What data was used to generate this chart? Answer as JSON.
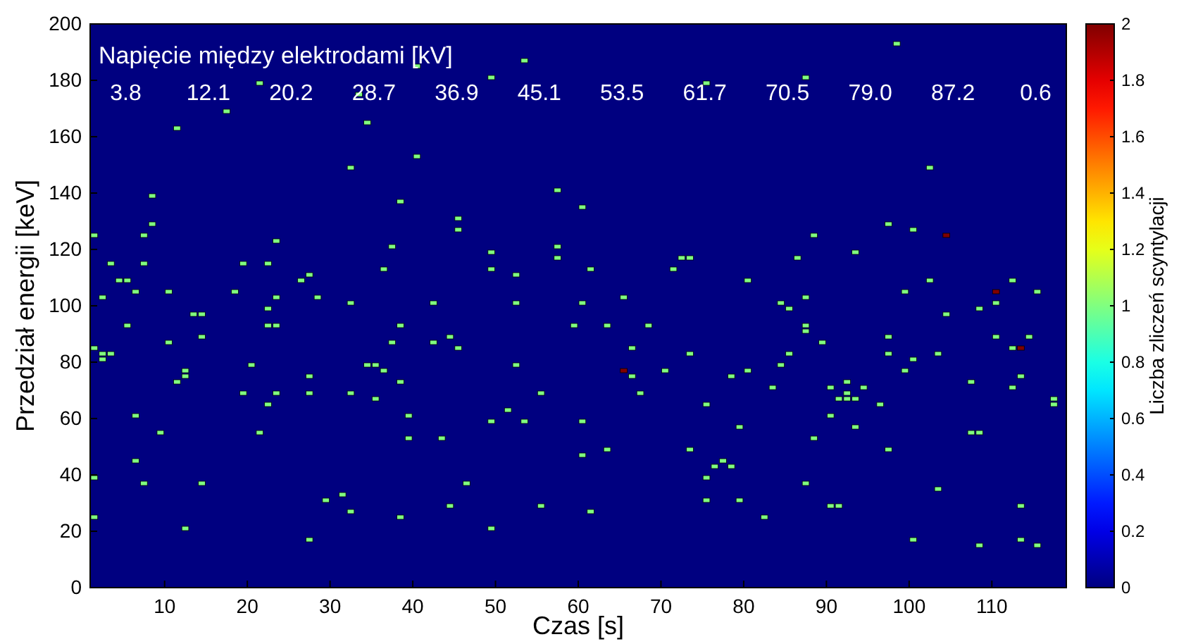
{
  "chart_data": {
    "type": "scatter",
    "xlabel": "Czas [s]",
    "ylabel": "Przedział energii [keV]",
    "clabel": "Liczba zliczeń scyntylacji",
    "annotations": [
      "Napięcie między elektrodami [kV]",
      "3.8",
      "12.1",
      "20.2",
      "28.7",
      "36.9",
      "45.1",
      "53.5",
      "61.7",
      "70.5",
      "79.0",
      "87.2",
      "0.6"
    ],
    "xlim": [
      1,
      119
    ],
    "xticks": [
      10,
      20,
      30,
      40,
      50,
      60,
      70,
      80,
      90,
      100,
      110
    ],
    "ylim": [
      0,
      200
    ],
    "yticks": [
      0,
      20,
      40,
      60,
      80,
      100,
      120,
      140,
      160,
      180,
      200
    ],
    "clim": [
      0,
      2
    ],
    "cticks": [
      0,
      0.2,
      0.4,
      0.6,
      0.8,
      1,
      1.2,
      1.4,
      1.6,
      1.8,
      2
    ],
    "marker": "square",
    "grid": false,
    "series": [
      {
        "x": [
          1.5,
          2.5,
          3.5,
          4.5,
          5.5,
          6.5,
          7.5,
          7.5,
          8.5,
          8.5,
          10.5,
          11.5,
          13.5,
          14.5,
          17.5,
          18.5,
          19.5,
          21.5,
          22.5,
          22.5,
          23.5,
          23.5,
          26.5,
          27.5,
          28.5,
          32.5,
          32.5,
          33.5,
          34.5,
          36.5,
          37.5,
          38.5,
          38.5,
          5.5,
          22.5,
          23.5,
          1.5,
          2.5,
          3.5,
          2.5,
          10.5,
          14.5,
          12.5,
          12.5,
          11.5,
          6.5,
          9.5,
          6.5,
          7.5,
          1.5,
          1.5,
          14.5,
          12.5,
          20.5,
          19.5,
          23.5,
          22.5,
          21.5,
          27.5,
          27.5,
          27.5,
          29.5,
          31.5,
          32.5,
          32.5,
          34.5,
          35.5,
          36.5,
          35.5,
          37.5,
          38.5,
          38.5,
          39.5,
          39.5,
          40.5,
          40.5,
          45.5,
          45.5,
          49.5,
          49.5,
          49.5,
          52.5,
          53.5,
          42.5,
          52.5,
          57.5,
          57.5,
          57.5,
          60.5,
          60.5,
          61.5,
          65.5,
          71.5,
          72.5,
          73.5,
          75.5,
          80.5,
          59.5,
          63.5,
          68.5,
          42.5,
          44.5,
          45.5,
          52.5,
          51.5,
          49.5,
          53.5,
          43.5,
          46.5,
          44.5,
          49.5,
          55.5,
          55.5,
          60.5,
          60.5,
          61.5,
          63.5,
          65.5,
          66.5,
          66.5,
          67.5,
          70.5,
          73.5,
          73.5,
          75.5,
          75.5,
          75.5,
          76.5,
          77.5,
          78.5,
          78.5,
          79.5,
          79.5,
          80.5,
          98.5,
          87.5,
          102.5,
          97.5,
          100.5,
          104.5,
          88.5,
          86.5,
          93.5,
          102.5,
          112.5,
          99.5,
          110.5,
          115.5,
          87.5,
          84.5,
          85.5,
          108.5,
          110.5,
          104.5,
          87.5,
          87.5,
          89.5,
          97.5,
          97.5,
          100.5,
          103.5,
          110.5,
          114.5,
          112.5,
          113.5,
          85.5,
          84.5,
          99.5,
          83.5,
          90.5,
          92.5,
          94.5,
          91.5,
          92.5,
          93.5,
          92.5,
          96.5,
          90.5,
          107.5,
          113.5,
          112.5,
          117.5,
          117.5,
          93.5,
          88.5,
          107.5,
          108.5,
          97.5,
          87.5,
          103.5,
          82.5,
          90.5,
          91.5,
          113.5,
          100.5,
          108.5,
          113.5,
          115.5
        ],
        "values": [
          125,
          103,
          115,
          109,
          109,
          105,
          115,
          125,
          129,
          139,
          105,
          163,
          97,
          97,
          169,
          105,
          115,
          179,
          115,
          99,
          123,
          103,
          109,
          111,
          103,
          149,
          101,
          175,
          165,
          113,
          121,
          137,
          93,
          93,
          93,
          93,
          85,
          83,
          83,
          81,
          87,
          89,
          77,
          75,
          73,
          61,
          55,
          45,
          37,
          39,
          25,
          37,
          21,
          79,
          69,
          69,
          65,
          55,
          75,
          69,
          17,
          31,
          33,
          27,
          69,
          79,
          79,
          77,
          67,
          87,
          73,
          25,
          61,
          53,
          185,
          153,
          131,
          127,
          181,
          119,
          113,
          111,
          187,
          101,
          101,
          141,
          121,
          117,
          135,
          101,
          113,
          103,
          113,
          117,
          117,
          179,
          109,
          93,
          93,
          93,
          87,
          89,
          85,
          79,
          63,
          59,
          59,
          53,
          37,
          29,
          21,
          69,
          29,
          59,
          47,
          27,
          49,
          77,
          85,
          75,
          69,
          77,
          83,
          49,
          65,
          39,
          31,
          43,
          45,
          43,
          75,
          57,
          31,
          77,
          193,
          181,
          149,
          129,
          127,
          125,
          125,
          117,
          119,
          109,
          109,
          105,
          105,
          105,
          103,
          101,
          99,
          99,
          101,
          97,
          93,
          91,
          87,
          89,
          83,
          81,
          83,
          89,
          89,
          85,
          85,
          83,
          79,
          77,
          71,
          71,
          73,
          71,
          67,
          67,
          67,
          69,
          65,
          61,
          73,
          75,
          71,
          67,
          65,
          57,
          53,
          55,
          55,
          49,
          37,
          35,
          25,
          29,
          29,
          29,
          17,
          15,
          17,
          15
        ],
        "cvalues": [
          1,
          1,
          1,
          1,
          1,
          1,
          1,
          1,
          1,
          1,
          1,
          1,
          1,
          1,
          1,
          1,
          1,
          1,
          1,
          1,
          1,
          1,
          1,
          1,
          1,
          1,
          1,
          1,
          1,
          1,
          1,
          1,
          1,
          1,
          1,
          1,
          1,
          1,
          1,
          1,
          1,
          1,
          1,
          1,
          1,
          1,
          1,
          1,
          1,
          1,
          1,
          1,
          1,
          1,
          1,
          1,
          1,
          1,
          1,
          1,
          1,
          1,
          1,
          1,
          1,
          1,
          1,
          1,
          1,
          1,
          1,
          1,
          1,
          1,
          1,
          1,
          1,
          1,
          1,
          1,
          1,
          1,
          1,
          1,
          1,
          1,
          1,
          1,
          1,
          1,
          1,
          1,
          1,
          1,
          1,
          1,
          1,
          1,
          1,
          1,
          1,
          1,
          1,
          1,
          1,
          1,
          1,
          1,
          1,
          1,
          1,
          1,
          1,
          1,
          1,
          1,
          1,
          2,
          1,
          1,
          1,
          1,
          1,
          1,
          1,
          1,
          1,
          1,
          1,
          1,
          1,
          1,
          1,
          1,
          1,
          1,
          1,
          1,
          1,
          2,
          1,
          1,
          1,
          1,
          1,
          1,
          2,
          1,
          1,
          1,
          1,
          1,
          1,
          1,
          1,
          1,
          1,
          1,
          1,
          1,
          1,
          1,
          1,
          1,
          2,
          1,
          1,
          1,
          1,
          1,
          1,
          1,
          1,
          1,
          1,
          1,
          1,
          1,
          1,
          1,
          1,
          1,
          1,
          1,
          1,
          1,
          1,
          1,
          1,
          1,
          1,
          1,
          1,
          1,
          1,
          1,
          1,
          1
        ]
      }
    ]
  }
}
